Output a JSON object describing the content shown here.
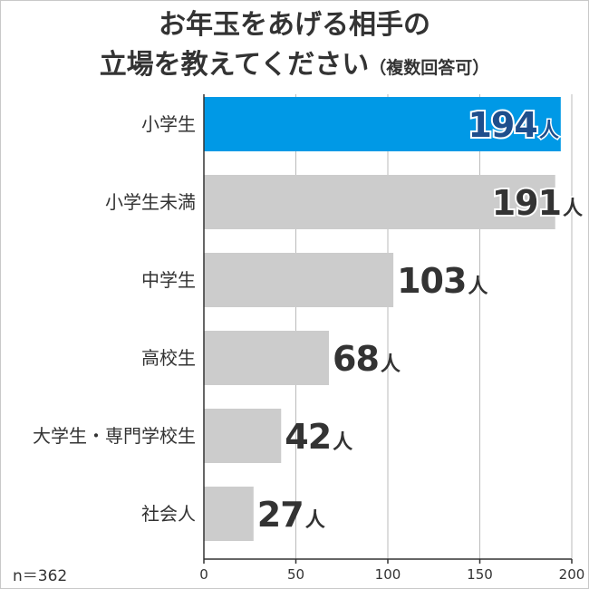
{
  "title": {
    "line1": "お年玉をあげる相手の",
    "line2": "立場を教えてください",
    "line2_suffix": "（複数回答可）"
  },
  "footnote": "n＝362",
  "chart_data": {
    "type": "bar",
    "orientation": "horizontal",
    "categories": [
      "小学生",
      "小学生未満",
      "中学生",
      "高校生",
      "大学生・専門学校生",
      "社会人"
    ],
    "values": [
      194,
      191,
      103,
      68,
      42,
      27
    ],
    "value_unit": "人",
    "highlight_index": 0,
    "xlim": [
      0,
      200
    ],
    "xticks": [
      0,
      50,
      100,
      150,
      200
    ],
    "grid": true,
    "colors": {
      "highlight": "#0099e6",
      "bar": "#cccccc",
      "grid": "#bbbbbb",
      "text": "#333333"
    }
  }
}
